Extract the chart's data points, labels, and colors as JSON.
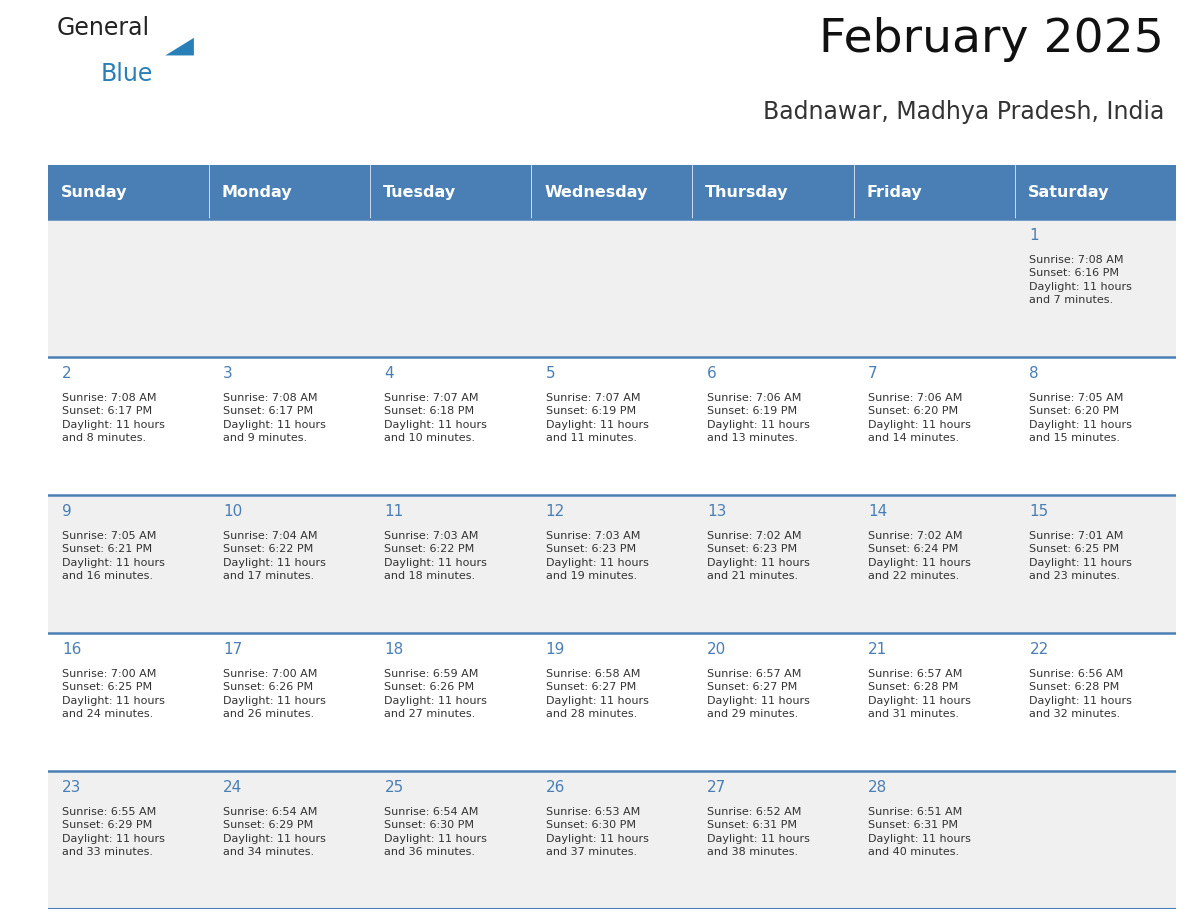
{
  "title": "February 2025",
  "subtitle": "Badnawar, Madhya Pradesh, India",
  "days_of_week": [
    "Sunday",
    "Monday",
    "Tuesday",
    "Wednesday",
    "Thursday",
    "Friday",
    "Saturday"
  ],
  "header_bg": "#4a7fb5",
  "header_text": "#ffffff",
  "row0_bg": "#f0f0f0",
  "row1_bg": "#ffffff",
  "row2_bg": "#f0f0f0",
  "row3_bg": "#ffffff",
  "row4_bg": "#f0f0f0",
  "divider_color": "#4a7fb5",
  "day_num_color": "#4a7fb5",
  "text_color": "#333333",
  "logo_general_color": "#222222",
  "logo_blue_color": "#2980b9",
  "logo_triangle_color": "#2980b9",
  "calendar_data": [
    [
      null,
      null,
      null,
      null,
      null,
      null,
      {
        "day": "1",
        "sunrise": "7:08 AM",
        "sunset": "6:16 PM",
        "daylight": "11 hours\nand 7 minutes."
      }
    ],
    [
      {
        "day": "2",
        "sunrise": "7:08 AM",
        "sunset": "6:17 PM",
        "daylight": "11 hours\nand 8 minutes."
      },
      {
        "day": "3",
        "sunrise": "7:08 AM",
        "sunset": "6:17 PM",
        "daylight": "11 hours\nand 9 minutes."
      },
      {
        "day": "4",
        "sunrise": "7:07 AM",
        "sunset": "6:18 PM",
        "daylight": "11 hours\nand 10 minutes."
      },
      {
        "day": "5",
        "sunrise": "7:07 AM",
        "sunset": "6:19 PM",
        "daylight": "11 hours\nand 11 minutes."
      },
      {
        "day": "6",
        "sunrise": "7:06 AM",
        "sunset": "6:19 PM",
        "daylight": "11 hours\nand 13 minutes."
      },
      {
        "day": "7",
        "sunrise": "7:06 AM",
        "sunset": "6:20 PM",
        "daylight": "11 hours\nand 14 minutes."
      },
      {
        "day": "8",
        "sunrise": "7:05 AM",
        "sunset": "6:20 PM",
        "daylight": "11 hours\nand 15 minutes."
      }
    ],
    [
      {
        "day": "9",
        "sunrise": "7:05 AM",
        "sunset": "6:21 PM",
        "daylight": "11 hours\nand 16 minutes."
      },
      {
        "day": "10",
        "sunrise": "7:04 AM",
        "sunset": "6:22 PM",
        "daylight": "11 hours\nand 17 minutes."
      },
      {
        "day": "11",
        "sunrise": "7:03 AM",
        "sunset": "6:22 PM",
        "daylight": "11 hours\nand 18 minutes."
      },
      {
        "day": "12",
        "sunrise": "7:03 AM",
        "sunset": "6:23 PM",
        "daylight": "11 hours\nand 19 minutes."
      },
      {
        "day": "13",
        "sunrise": "7:02 AM",
        "sunset": "6:23 PM",
        "daylight": "11 hours\nand 21 minutes."
      },
      {
        "day": "14",
        "sunrise": "7:02 AM",
        "sunset": "6:24 PM",
        "daylight": "11 hours\nand 22 minutes."
      },
      {
        "day": "15",
        "sunrise": "7:01 AM",
        "sunset": "6:25 PM",
        "daylight": "11 hours\nand 23 minutes."
      }
    ],
    [
      {
        "day": "16",
        "sunrise": "7:00 AM",
        "sunset": "6:25 PM",
        "daylight": "11 hours\nand 24 minutes."
      },
      {
        "day": "17",
        "sunrise": "7:00 AM",
        "sunset": "6:26 PM",
        "daylight": "11 hours\nand 26 minutes."
      },
      {
        "day": "18",
        "sunrise": "6:59 AM",
        "sunset": "6:26 PM",
        "daylight": "11 hours\nand 27 minutes."
      },
      {
        "day": "19",
        "sunrise": "6:58 AM",
        "sunset": "6:27 PM",
        "daylight": "11 hours\nand 28 minutes."
      },
      {
        "day": "20",
        "sunrise": "6:57 AM",
        "sunset": "6:27 PM",
        "daylight": "11 hours\nand 29 minutes."
      },
      {
        "day": "21",
        "sunrise": "6:57 AM",
        "sunset": "6:28 PM",
        "daylight": "11 hours\nand 31 minutes."
      },
      {
        "day": "22",
        "sunrise": "6:56 AM",
        "sunset": "6:28 PM",
        "daylight": "11 hours\nand 32 minutes."
      }
    ],
    [
      {
        "day": "23",
        "sunrise": "6:55 AM",
        "sunset": "6:29 PM",
        "daylight": "11 hours\nand 33 minutes."
      },
      {
        "day": "24",
        "sunrise": "6:54 AM",
        "sunset": "6:29 PM",
        "daylight": "11 hours\nand 34 minutes."
      },
      {
        "day": "25",
        "sunrise": "6:54 AM",
        "sunset": "6:30 PM",
        "daylight": "11 hours\nand 36 minutes."
      },
      {
        "day": "26",
        "sunrise": "6:53 AM",
        "sunset": "6:30 PM",
        "daylight": "11 hours\nand 37 minutes."
      },
      {
        "day": "27",
        "sunrise": "6:52 AM",
        "sunset": "6:31 PM",
        "daylight": "11 hours\nand 38 minutes."
      },
      {
        "day": "28",
        "sunrise": "6:51 AM",
        "sunset": "6:31 PM",
        "daylight": "11 hours\nand 40 minutes."
      },
      null
    ]
  ]
}
